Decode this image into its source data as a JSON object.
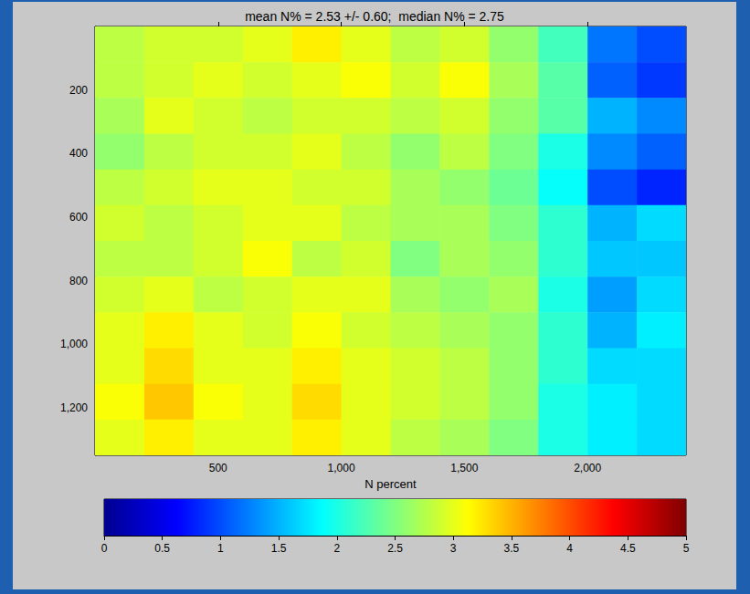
{
  "chart_data": {
    "type": "heatmap",
    "title": "mean N% = 2.53 +/- 0.60;  median N% = 2.75",
    "xlabel": "N percent",
    "x": [
      100,
      300,
      500,
      700,
      900,
      1100,
      1300,
      1500,
      1700,
      1900,
      2100,
      2300
    ],
    "y": [
      56.25,
      168.75,
      281.25,
      393.75,
      506.25,
      618.75,
      731.25,
      843.75,
      956.25,
      1068.75,
      1181.25,
      1293.75
    ],
    "values": [
      [
        2.8,
        2.9,
        2.9,
        3.0,
        3.2,
        3.0,
        2.8,
        2.9,
        2.6,
        2.2,
        1.2,
        1.0
      ],
      [
        2.8,
        2.9,
        3.0,
        2.9,
        3.0,
        3.1,
        2.9,
        3.1,
        2.7,
        2.3,
        1.1,
        0.9
      ],
      [
        2.7,
        3.0,
        2.9,
        2.8,
        2.9,
        2.9,
        2.8,
        2.9,
        2.6,
        2.3,
        1.5,
        1.3
      ],
      [
        2.6,
        2.8,
        2.9,
        2.9,
        3.0,
        2.8,
        2.6,
        2.8,
        2.5,
        2.0,
        1.3,
        1.1
      ],
      [
        2.8,
        2.9,
        3.0,
        3.0,
        2.9,
        2.9,
        2.7,
        2.6,
        2.4,
        1.9,
        1.0,
        0.8
      ],
      [
        2.9,
        2.8,
        2.9,
        3.0,
        3.0,
        2.8,
        2.7,
        2.7,
        2.5,
        2.1,
        1.5,
        1.7
      ],
      [
        2.8,
        2.8,
        2.9,
        3.1,
        2.8,
        2.9,
        2.5,
        2.7,
        2.6,
        2.1,
        1.6,
        1.6
      ],
      [
        2.9,
        3.0,
        2.8,
        2.9,
        3.0,
        3.0,
        2.7,
        2.6,
        2.7,
        2.0,
        1.4,
        1.7
      ],
      [
        3.0,
        3.2,
        3.0,
        2.9,
        3.1,
        2.9,
        2.8,
        2.7,
        2.6,
        2.1,
        1.5,
        1.8
      ],
      [
        3.0,
        3.3,
        3.0,
        3.0,
        3.2,
        3.0,
        2.9,
        2.8,
        2.6,
        2.1,
        1.7,
        1.7
      ],
      [
        3.1,
        3.4,
        3.1,
        3.0,
        3.3,
        3.0,
        2.9,
        2.8,
        2.6,
        2.0,
        1.8,
        1.7
      ],
      [
        3.0,
        3.2,
        3.0,
        3.0,
        3.2,
        3.0,
        2.8,
        2.7,
        2.5,
        2.0,
        1.8,
        1.7
      ]
    ],
    "xlim": [
      0,
      2400
    ],
    "xticks": [
      500,
      1000,
      1500,
      2000
    ],
    "ylim": [
      0,
      1350
    ],
    "yticks": [
      200,
      400,
      600,
      800,
      1000,
      1200
    ],
    "colorbar_lim": [
      0,
      5
    ],
    "colorbar_ticks": [
      0,
      0.5,
      1,
      1.5,
      2,
      2.5,
      3,
      3.5,
      4,
      4.5,
      5
    ],
    "grid": false
  }
}
